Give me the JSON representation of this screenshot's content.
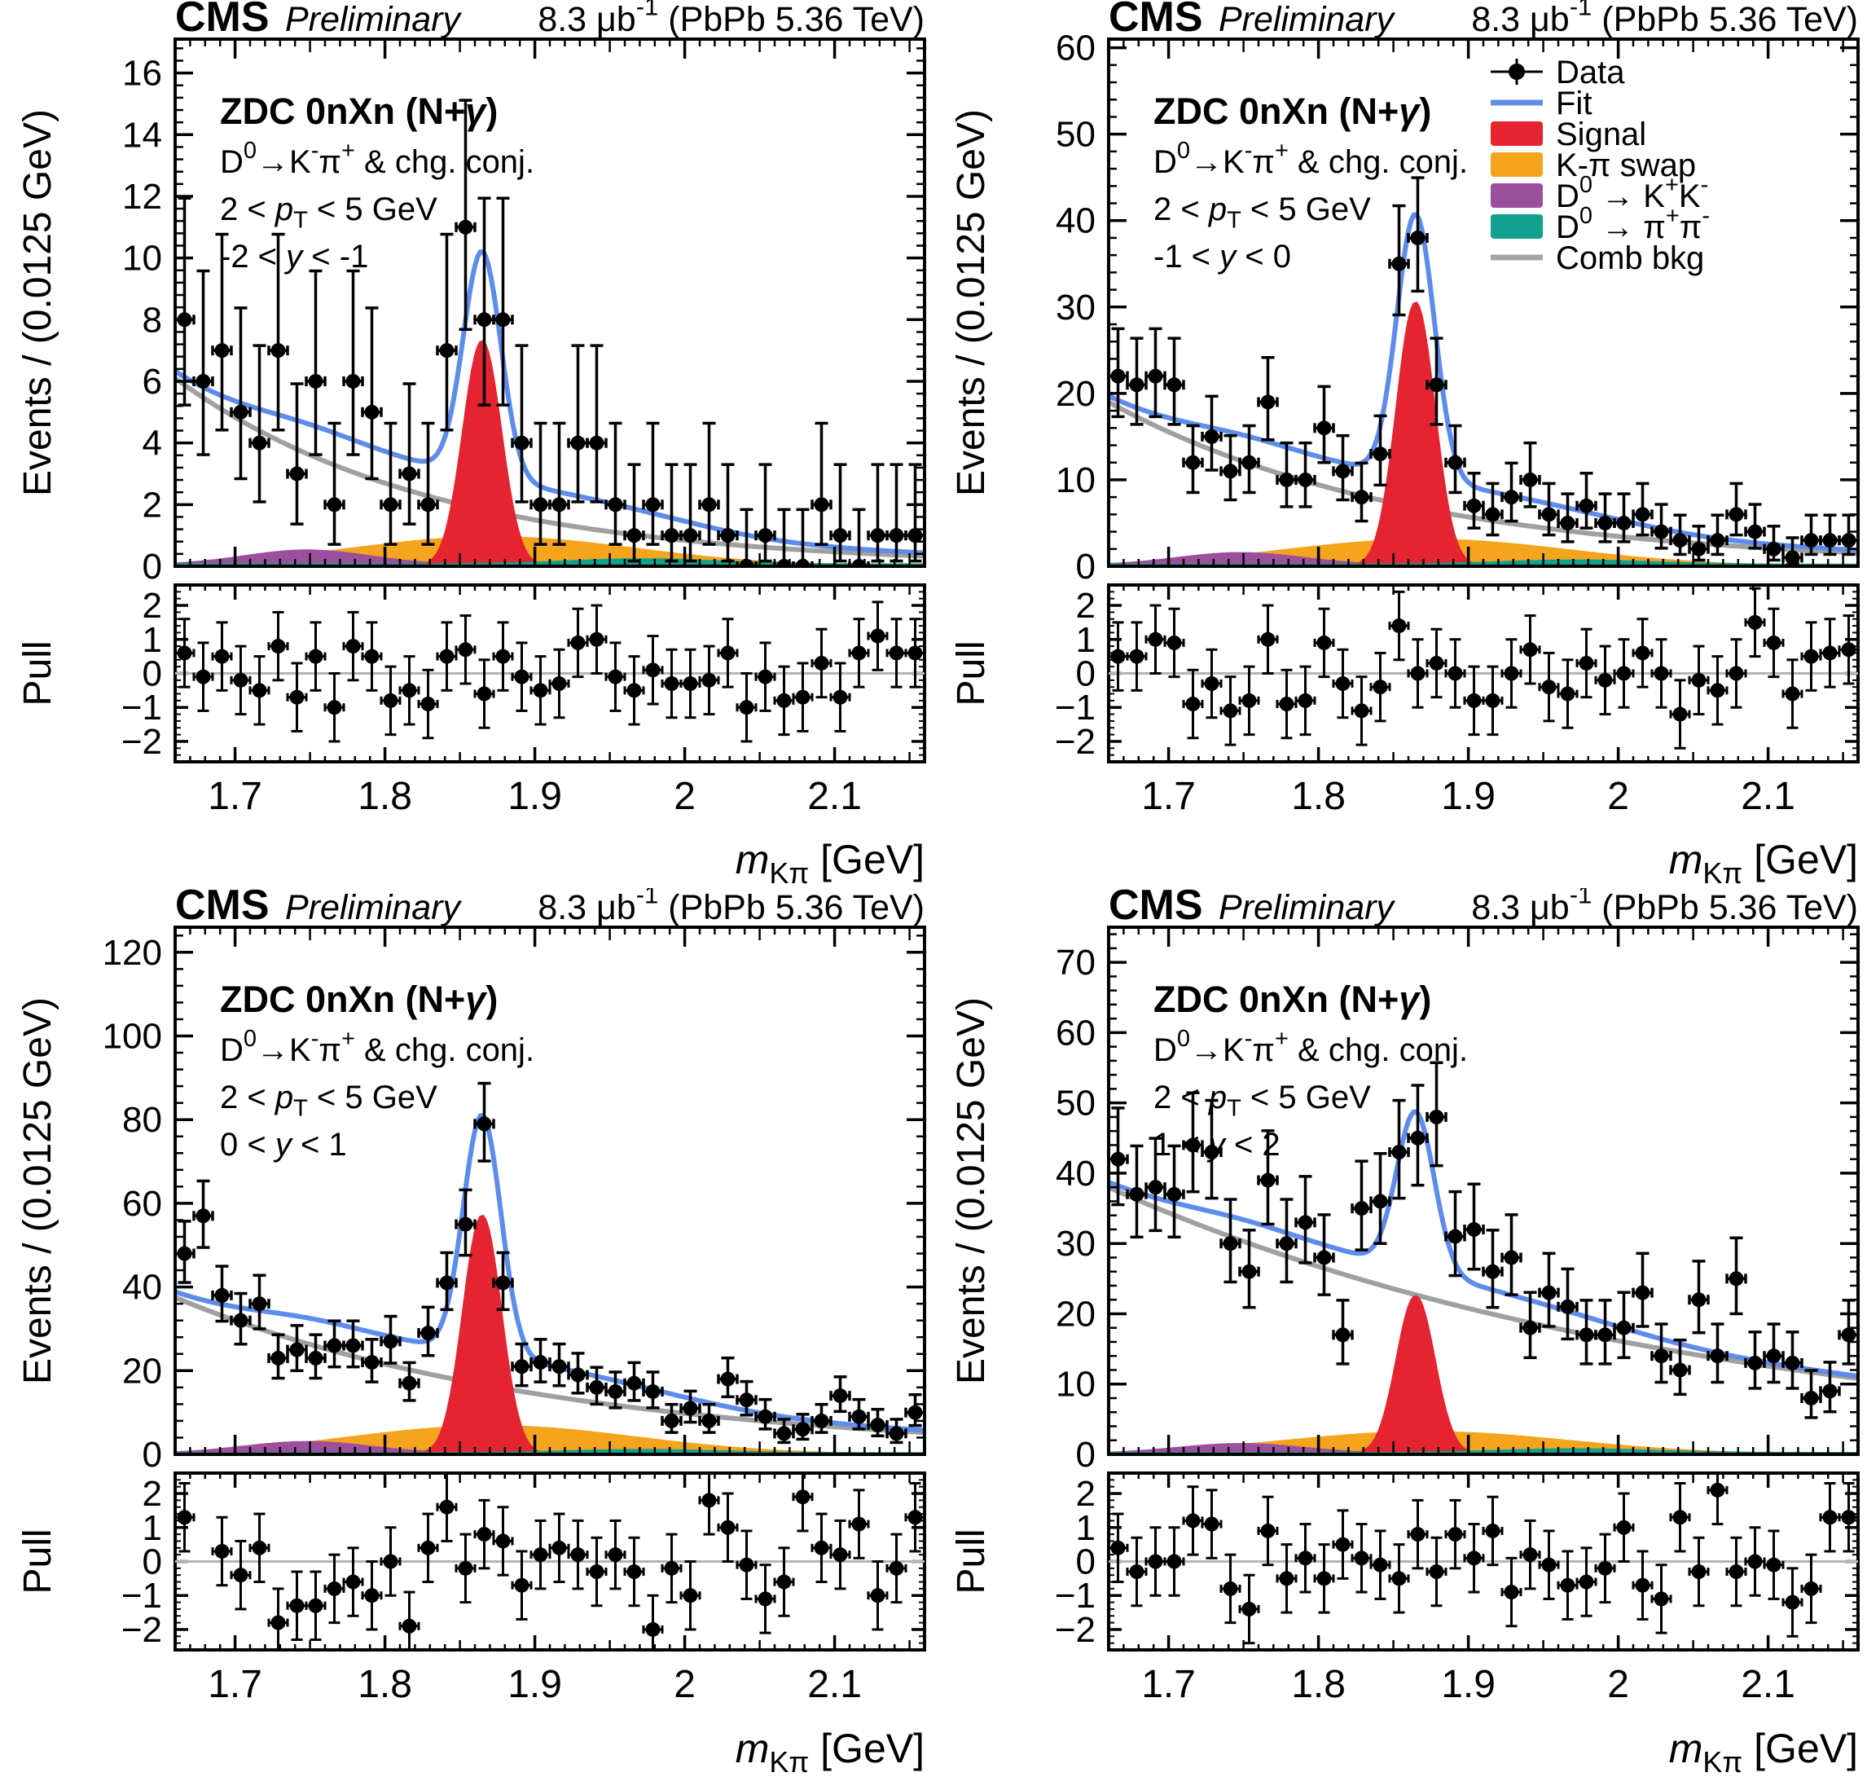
{
  "header": {
    "experiment": "CMS",
    "label": "Preliminary",
    "lumi": "8.3 μb^{-1} (PbPb 5.36 TeV)"
  },
  "annotations": {
    "line1": "ZDC 0nXn (N+*γ*)",
    "line2": "D^{0}→K^{-}π^{+} & chg. conj.",
    "line3": "2 < *p*_{T} < 5 GeV"
  },
  "axes": {
    "ylabel": "Events / (0.0125 GeV)",
    "pull_label": "Pull",
    "xlabel": "*m*_{Kπ} [GeV]",
    "x_tick_labels": [
      "1.7",
      "1.8",
      "1.9",
      "2",
      "2.1"
    ],
    "x_tick_values": [
      1.7,
      1.8,
      1.9,
      2.0,
      2.1
    ],
    "x_range": [
      1.66,
      2.16
    ],
    "pull_tick_labels": [
      "2",
      "1",
      "0",
      "−1",
      "−2"
    ],
    "pull_tick_values": [
      2,
      1,
      0,
      -1,
      -2
    ],
    "pull_range": [
      -2.6,
      2.6
    ]
  },
  "legend": {
    "entries": [
      {
        "label": "Data",
        "type": "marker",
        "color": "#000000"
      },
      {
        "label": "Fit",
        "type": "line",
        "color": "#5d8ceb"
      },
      {
        "label": "Signal",
        "type": "box",
        "color": "#e42430"
      },
      {
        "label": "K-π swap",
        "type": "box",
        "color": "#f5a41d"
      },
      {
        "label": "D^{0} → K^{+}K^{-}",
        "type": "box",
        "color": "#9c4f9d"
      },
      {
        "label": "D^{0} → π^{+}π^{-}",
        "type": "box",
        "color": "#11a08d"
      },
      {
        "label": "Comb bkg",
        "type": "line",
        "color": "#a5a5a5"
      }
    ]
  },
  "colors": {
    "fit": "#5d8ceb",
    "signal": "#e42430",
    "swap": "#f5a41d",
    "kk": "#9c4f9d",
    "pipi": "#11a08d",
    "comb": "#a0a0a0",
    "data": "#000000",
    "frame": "#000000",
    "pull_zero": "#b4b4b4"
  },
  "chart_data": {
    "type": "histogram-fit-with-pull",
    "x_bin_start": 1.66625,
    "bin_width": 0.0125,
    "n_bins": 40,
    "shapes": {
      "signal_mean": 1.8648,
      "signal_sigma": 0.0125,
      "swap_mean": 1.872,
      "swap_sigma": 0.095,
      "kk_mean": 1.748,
      "kk_sigma": 0.042,
      "pipi_mean": 1.972,
      "pipi_sigma": 0.05
    },
    "panels": [
      {
        "name": "top-left",
        "rapidity": "-2 < *y* < -1",
        "legend": false,
        "ymax": 17.1,
        "ystep": 2,
        "yminor": 0.4,
        "ylabels": [
          0,
          2,
          4,
          6,
          8,
          10,
          12,
          14,
          16
        ],
        "bkg": [
          6.1,
          0.33
        ],
        "swap": 0.95,
        "kk": 0.52,
        "pipi": 0.22,
        "sig": 7.3,
        "counts": [
          8,
          6,
          7,
          5,
          4,
          7,
          3,
          6,
          2,
          6,
          5,
          2,
          3,
          2,
          7,
          11,
          8,
          8,
          4,
          2,
          2,
          4,
          4,
          2,
          1,
          2,
          1,
          1,
          2,
          1,
          0,
          1,
          0,
          0,
          2,
          1,
          0,
          1,
          1,
          1
        ],
        "pulls": [
          0.6,
          -0.1,
          0.5,
          -0.2,
          -0.5,
          0.8,
          -0.7,
          0.5,
          -1.0,
          0.8,
          0.5,
          -0.8,
          -0.5,
          -0.9,
          0.5,
          0.7,
          -0.6,
          0.5,
          -0.1,
          -0.5,
          -0.3,
          0.9,
          1.0,
          -0.1,
          -0.5,
          0.1,
          -0.3,
          -0.3,
          -0.2,
          0.6,
          -1.0,
          -0.1,
          -0.8,
          -0.7,
          0.3,
          -0.7,
          0.6,
          1.1,
          0.6,
          0.6
        ]
      },
      {
        "name": "top-right",
        "rapidity": "-1 < *y* < 0",
        "legend": true,
        "ymax": 61,
        "ystep": 10,
        "yminor": 2,
        "ylabels": [
          0,
          10,
          20,
          30,
          40,
          50,
          60
        ],
        "bkg": [
          19,
          1.55
        ],
        "swap": 3.1,
        "kk": 1.55,
        "pipi": 0.65,
        "sig": 30.5,
        "counts": [
          22,
          21,
          22,
          21,
          12,
          15,
          11,
          12,
          19,
          10,
          10,
          16,
          11,
          8,
          13,
          35,
          38,
          21,
          12,
          7,
          6,
          8,
          10,
          6,
          5,
          7,
          5,
          5,
          6,
          4,
          3,
          2,
          3,
          6,
          4,
          2,
          1,
          3,
          3,
          3
        ],
        "pulls": [
          0.5,
          0.5,
          1.0,
          0.9,
          -0.9,
          -0.3,
          -1.1,
          -0.8,
          1.0,
          -0.9,
          -0.8,
          0.9,
          -0.3,
          -1.1,
          -0.4,
          1.4,
          0.0,
          0.3,
          0.0,
          -0.8,
          -0.8,
          0.0,
          0.7,
          -0.4,
          -0.6,
          0.3,
          -0.2,
          0.0,
          0.6,
          0.0,
          -1.2,
          -0.2,
          -0.5,
          0.0,
          1.5,
          0.9,
          -0.6,
          0.5,
          0.6,
          0.7
        ]
      },
      {
        "name": "bottom-left",
        "rapidity": "0 < *y* < 1",
        "legend": false,
        "ymax": 126,
        "ystep": 20,
        "yminor": 4,
        "ylabels": [
          0,
          20,
          40,
          60,
          80,
          100,
          120
        ],
        "bkg": [
          37.5,
          5.2
        ],
        "swap": 6.8,
        "kk": 3.0,
        "pipi": 1.0,
        "sig": 57,
        "counts": [
          48,
          57,
          38,
          32,
          36,
          23,
          25,
          23,
          26,
          26,
          22,
          27,
          17,
          29,
          41,
          55,
          79,
          41,
          21,
          22,
          21,
          19,
          16,
          15,
          17,
          15,
          8,
          11,
          8,
          18,
          13,
          9,
          5,
          6,
          8,
          14,
          9,
          7,
          5,
          10
        ],
        "pulls": [
          1.3,
          null,
          0.3,
          -0.4,
          0.4,
          -1.8,
          -1.3,
          -1.3,
          -0.8,
          -0.6,
          -1.0,
          0.0,
          -1.9,
          0.4,
          1.6,
          -0.2,
          0.8,
          0.6,
          -0.7,
          0.2,
          0.4,
          0.2,
          -0.3,
          0.2,
          -0.3,
          -2.0,
          -0.2,
          -1.0,
          1.8,
          1.0,
          -0.1,
          -1.1,
          -0.6,
          1.9,
          0.4,
          0.2,
          1.1,
          -1.0,
          -0.2,
          1.3
        ]
      },
      {
        "name": "bottom-right",
        "rapidity": "1 < *y* < 2",
        "legend": false,
        "ymax": 75,
        "ystep": 10,
        "yminor": 2,
        "ylabels": [
          0,
          10,
          20,
          30,
          40,
          50,
          60,
          70
        ],
        "bkg": [
          38,
          10.8
        ],
        "swap": 3.2,
        "kk": 1.5,
        "pipi": 0.7,
        "sig": 22.5,
        "counts": [
          42,
          37,
          38,
          37,
          44,
          43,
          30,
          26,
          39,
          30,
          33,
          28,
          17,
          35,
          36,
          43,
          45,
          48,
          31,
          32,
          26,
          28,
          18,
          23,
          21,
          17,
          17,
          18,
          23,
          14,
          12,
          22,
          14,
          25,
          13,
          14,
          13,
          8,
          9,
          17
        ],
        "pulls": [
          0.4,
          -0.3,
          0.0,
          0.0,
          1.2,
          1.1,
          -0.8,
          -1.4,
          0.9,
          -0.5,
          0.1,
          -0.5,
          0.5,
          0.1,
          -0.1,
          -0.5,
          0.8,
          -0.3,
          0.8,
          0.1,
          0.9,
          -0.9,
          0.2,
          -0.1,
          -0.7,
          -0.6,
          -0.2,
          1.0,
          -0.7,
          -1.1,
          1.3,
          -0.3,
          2.1,
          -0.3,
          0.0,
          -0.1,
          -1.2,
          -0.8,
          1.3,
          1.3
        ]
      }
    ]
  }
}
